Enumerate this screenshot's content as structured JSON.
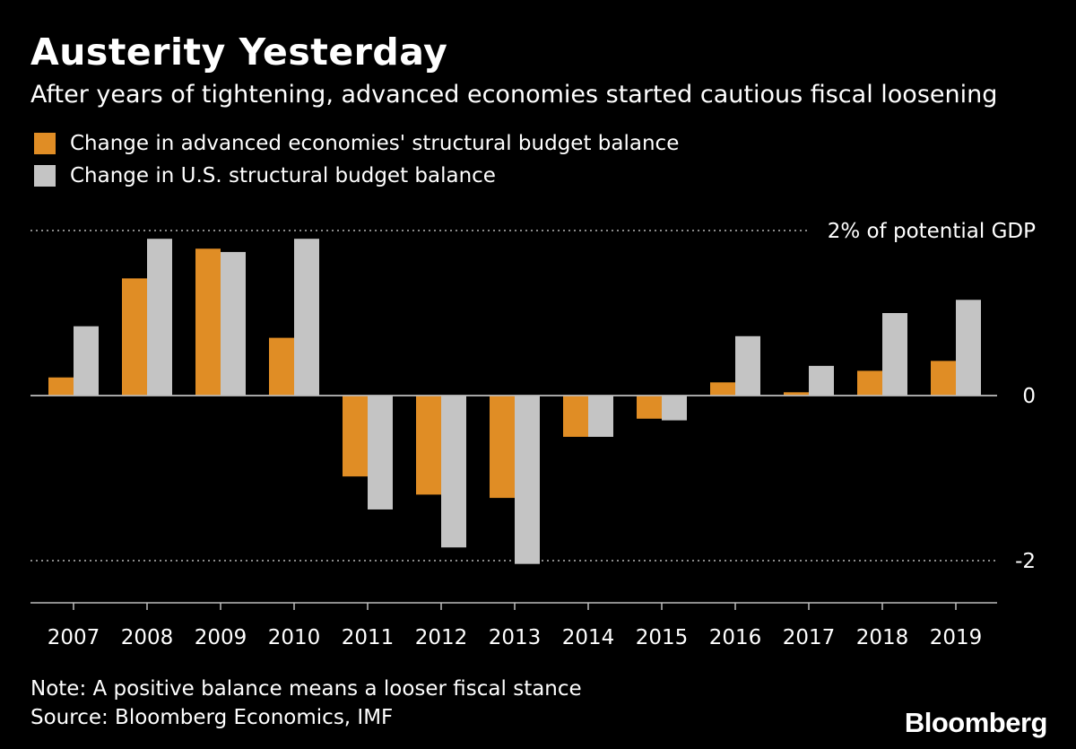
{
  "header": {
    "title": "Austerity Yesterday",
    "subtitle": "After years of tightening, advanced economies started cautious fiscal loosening"
  },
  "legend": [
    {
      "label": "Change in advanced economies' structural budget balance",
      "color": "#e08d25"
    },
    {
      "label": "Change in U.S. structural budget balance",
      "color": "#c4c4c4"
    }
  ],
  "chart_data": {
    "type": "bar",
    "categories": [
      "2007",
      "2008",
      "2009",
      "2010",
      "2011",
      "2012",
      "2013",
      "2014",
      "2015",
      "2016",
      "2017",
      "2018",
      "2019"
    ],
    "series": [
      {
        "name": "Change in advanced economies' structural budget balance",
        "color": "#e08d25",
        "values": [
          0.22,
          1.42,
          1.78,
          0.7,
          -0.98,
          -1.2,
          -1.24,
          -0.5,
          -0.28,
          0.16,
          0.04,
          0.3,
          0.42
        ]
      },
      {
        "name": "Change in U.S. structural budget balance",
        "color": "#c4c4c4",
        "values": [
          0.84,
          1.9,
          1.74,
          1.9,
          -1.38,
          -1.84,
          -2.04,
          -0.5,
          -0.3,
          0.72,
          0.36,
          1.0,
          1.16
        ]
      }
    ],
    "y_ticks": [
      {
        "value": 2,
        "label": "2% of potential GDP",
        "style": "dotted"
      },
      {
        "value": 0,
        "label": "0",
        "style": "solid"
      },
      {
        "value": -2,
        "label": "-2",
        "style": "dotted"
      }
    ],
    "ylim": [
      -2.5,
      2
    ],
    "legend_position": "top-left",
    "grid": true
  },
  "footer": {
    "note": "Note: A positive balance means a looser fiscal stance",
    "source": "Source: Bloomberg Economics, IMF",
    "brand": "Bloomberg"
  }
}
